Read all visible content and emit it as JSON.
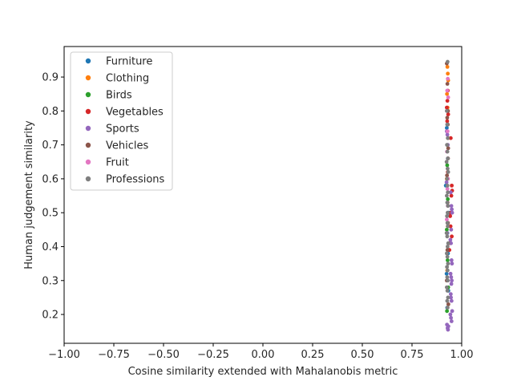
{
  "chart_data": {
    "type": "scatter",
    "title": "",
    "xlabel": "Cosine similarity extended with Mahalanobis metric",
    "ylabel": "Human judgement similarity",
    "xlim": [
      -1.0,
      1.0
    ],
    "ylim": [
      0.115,
      0.99
    ],
    "xticks": [
      -1.0,
      -0.75,
      -0.5,
      -0.25,
      0.0,
      0.25,
      0.5,
      0.75,
      1.0
    ],
    "xtick_labels": [
      "−1.00",
      "−0.75",
      "−0.50",
      "−0.25",
      "0.00",
      "0.25",
      "0.50",
      "0.75",
      "1.00"
    ],
    "yticks": [
      0.2,
      0.3,
      0.4,
      0.5,
      0.6,
      0.7,
      0.8,
      0.9
    ],
    "ytick_labels": [
      "0.2",
      "0.3",
      "0.4",
      "0.5",
      "0.6",
      "0.7",
      "0.8",
      "0.9"
    ],
    "grid": false,
    "legend_position": "top-left",
    "series": [
      {
        "name": "Furniture",
        "color": "#1f77b4",
        "x": [
          0.925,
          0.93,
          0.92,
          0.935,
          0.928,
          0.931,
          0.924,
          0.933,
          0.927
        ],
        "y": [
          0.75,
          0.66,
          0.58,
          0.5,
          0.44,
          0.38,
          0.32,
          0.27,
          0.22
        ]
      },
      {
        "name": "Clothing",
        "color": "#ff7f0e",
        "x": [
          0.928,
          0.93,
          0.932,
          0.926,
          0.929,
          0.931,
          0.925,
          0.93,
          0.927
        ],
        "y": [
          0.93,
          0.91,
          0.89,
          0.85,
          0.81,
          0.72,
          0.6,
          0.46,
          0.33
        ]
      },
      {
        "name": "Birds",
        "color": "#2ca02c",
        "x": [
          0.927,
          0.93,
          0.925,
          0.929,
          0.932,
          0.926
        ],
        "y": [
          0.64,
          0.54,
          0.45,
          0.36,
          0.28,
          0.21
        ]
      },
      {
        "name": "Vegetables",
        "color": "#d62728",
        "x": [
          0.93,
          0.928,
          0.925,
          0.932,
          0.927,
          0.945,
          0.95,
          0.952,
          0.948,
          0.946,
          0.942,
          0.944,
          0.95,
          0.94,
          0.938,
          0.93,
          0.929,
          0.931
        ],
        "y": [
          0.86,
          0.83,
          0.81,
          0.79,
          0.77,
          0.72,
          0.58,
          0.565,
          0.55,
          0.5,
          0.49,
          0.46,
          0.43,
          0.41,
          0.39,
          0.62,
          0.6,
          0.66
        ]
      },
      {
        "name": "Sports",
        "color": "#9467bd",
        "x": [
          0.925,
          0.928,
          0.93,
          0.945,
          0.948,
          0.95,
          0.952,
          0.947,
          0.943,
          0.946,
          0.949,
          0.951,
          0.944,
          0.947,
          0.95,
          0.948,
          0.945,
          0.946,
          0.949,
          0.952,
          0.943,
          0.946,
          0.949,
          0.926,
          0.929,
          0.931,
          0.933,
          0.927,
          0.924
        ],
        "y": [
          0.74,
          0.73,
          0.7,
          0.56,
          0.52,
          0.51,
          0.5,
          0.45,
          0.42,
          0.41,
          0.36,
          0.35,
          0.32,
          0.31,
          0.3,
          0.29,
          0.26,
          0.25,
          0.24,
          0.21,
          0.2,
          0.19,
          0.18,
          0.17,
          0.16,
          0.155,
          0.165,
          0.44,
          0.59
        ]
      },
      {
        "name": "Vehicles",
        "color": "#8c564b",
        "x": [
          0.925,
          0.928,
          0.931,
          0.927,
          0.93,
          0.932,
          0.926,
          0.929,
          0.931,
          0.928,
          0.925,
          0.933
        ],
        "y": [
          0.94,
          0.88,
          0.8,
          0.78,
          0.76,
          0.69,
          0.61,
          0.53,
          0.47,
          0.39,
          0.3,
          0.23
        ]
      },
      {
        "name": "Fruit",
        "color": "#e377c2",
        "x": [
          0.93,
          0.927,
          0.932,
          0.929,
          0.926,
          0.931,
          0.928,
          0.93,
          0.925
        ],
        "y": [
          0.895,
          0.86,
          0.84,
          0.74,
          0.68,
          0.6,
          0.57,
          0.52,
          0.48
        ]
      },
      {
        "name": "Professions",
        "color": "#7f7f7f",
        "x": [
          0.929,
          0.925,
          0.927,
          0.93,
          0.926,
          0.928,
          0.931,
          0.924,
          0.929,
          0.932,
          0.926,
          0.928,
          0.93,
          0.925,
          0.927,
          0.931,
          0.929,
          0.926,
          0.928,
          0.93,
          0.924,
          0.927,
          0.932,
          0.929,
          0.925,
          0.928,
          0.931,
          0.926,
          0.929,
          0.927,
          0.93,
          0.925,
          0.928,
          0.931,
          0.927,
          0.929
        ],
        "y": [
          0.945,
          0.8,
          0.76,
          0.72,
          0.7,
          0.68,
          0.66,
          0.65,
          0.63,
          0.62,
          0.6,
          0.58,
          0.56,
          0.55,
          0.53,
          0.52,
          0.5,
          0.49,
          0.47,
          0.46,
          0.44,
          0.43,
          0.41,
          0.4,
          0.38,
          0.37,
          0.35,
          0.34,
          0.33,
          0.31,
          0.3,
          0.28,
          0.27,
          0.25,
          0.24,
          0.22
        ]
      }
    ]
  }
}
